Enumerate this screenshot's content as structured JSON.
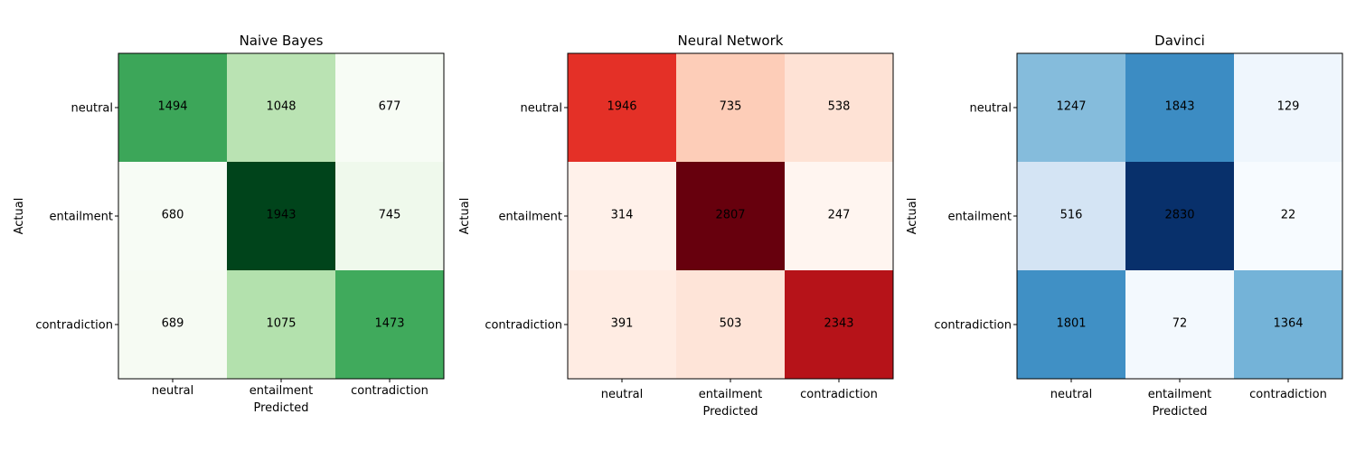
{
  "chart_data": [
    {
      "type": "heatmap",
      "title": "Naive Bayes",
      "xlabel": "Predicted",
      "ylabel": "Actual",
      "x_categories": [
        "neutral",
        "entailment",
        "contradiction"
      ],
      "y_categories": [
        "neutral",
        "entailment",
        "contradiction"
      ],
      "values": [
        [
          1494,
          1048,
          677
        ],
        [
          680,
          1943,
          745
        ],
        [
          689,
          1075,
          1473
        ]
      ],
      "colormap": "Greens",
      "color_low": "#f7fcf5",
      "color_high": "#00441b"
    },
    {
      "type": "heatmap",
      "title": "Neural Network",
      "xlabel": "Predicted",
      "ylabel": "Actual",
      "x_categories": [
        "neutral",
        "entailment",
        "contradiction"
      ],
      "y_categories": [
        "neutral",
        "entailment",
        "contradiction"
      ],
      "values": [
        [
          1946,
          735,
          538
        ],
        [
          314,
          2807,
          247
        ],
        [
          391,
          503,
          2343
        ]
      ],
      "colormap": "Reds",
      "color_low": "#fff5f0",
      "color_high": "#67000d"
    },
    {
      "type": "heatmap",
      "title": "Davinci",
      "xlabel": "Predicted",
      "ylabel": "Actual",
      "x_categories": [
        "neutral",
        "entailment",
        "contradiction"
      ],
      "y_categories": [
        "neutral",
        "entailment",
        "contradiction"
      ],
      "values": [
        [
          1247,
          1843,
          129
        ],
        [
          516,
          2830,
          22
        ],
        [
          1801,
          72,
          1364
        ]
      ],
      "colormap": "Blues",
      "color_low": "#f7fbff",
      "color_high": "#08306b"
    }
  ]
}
